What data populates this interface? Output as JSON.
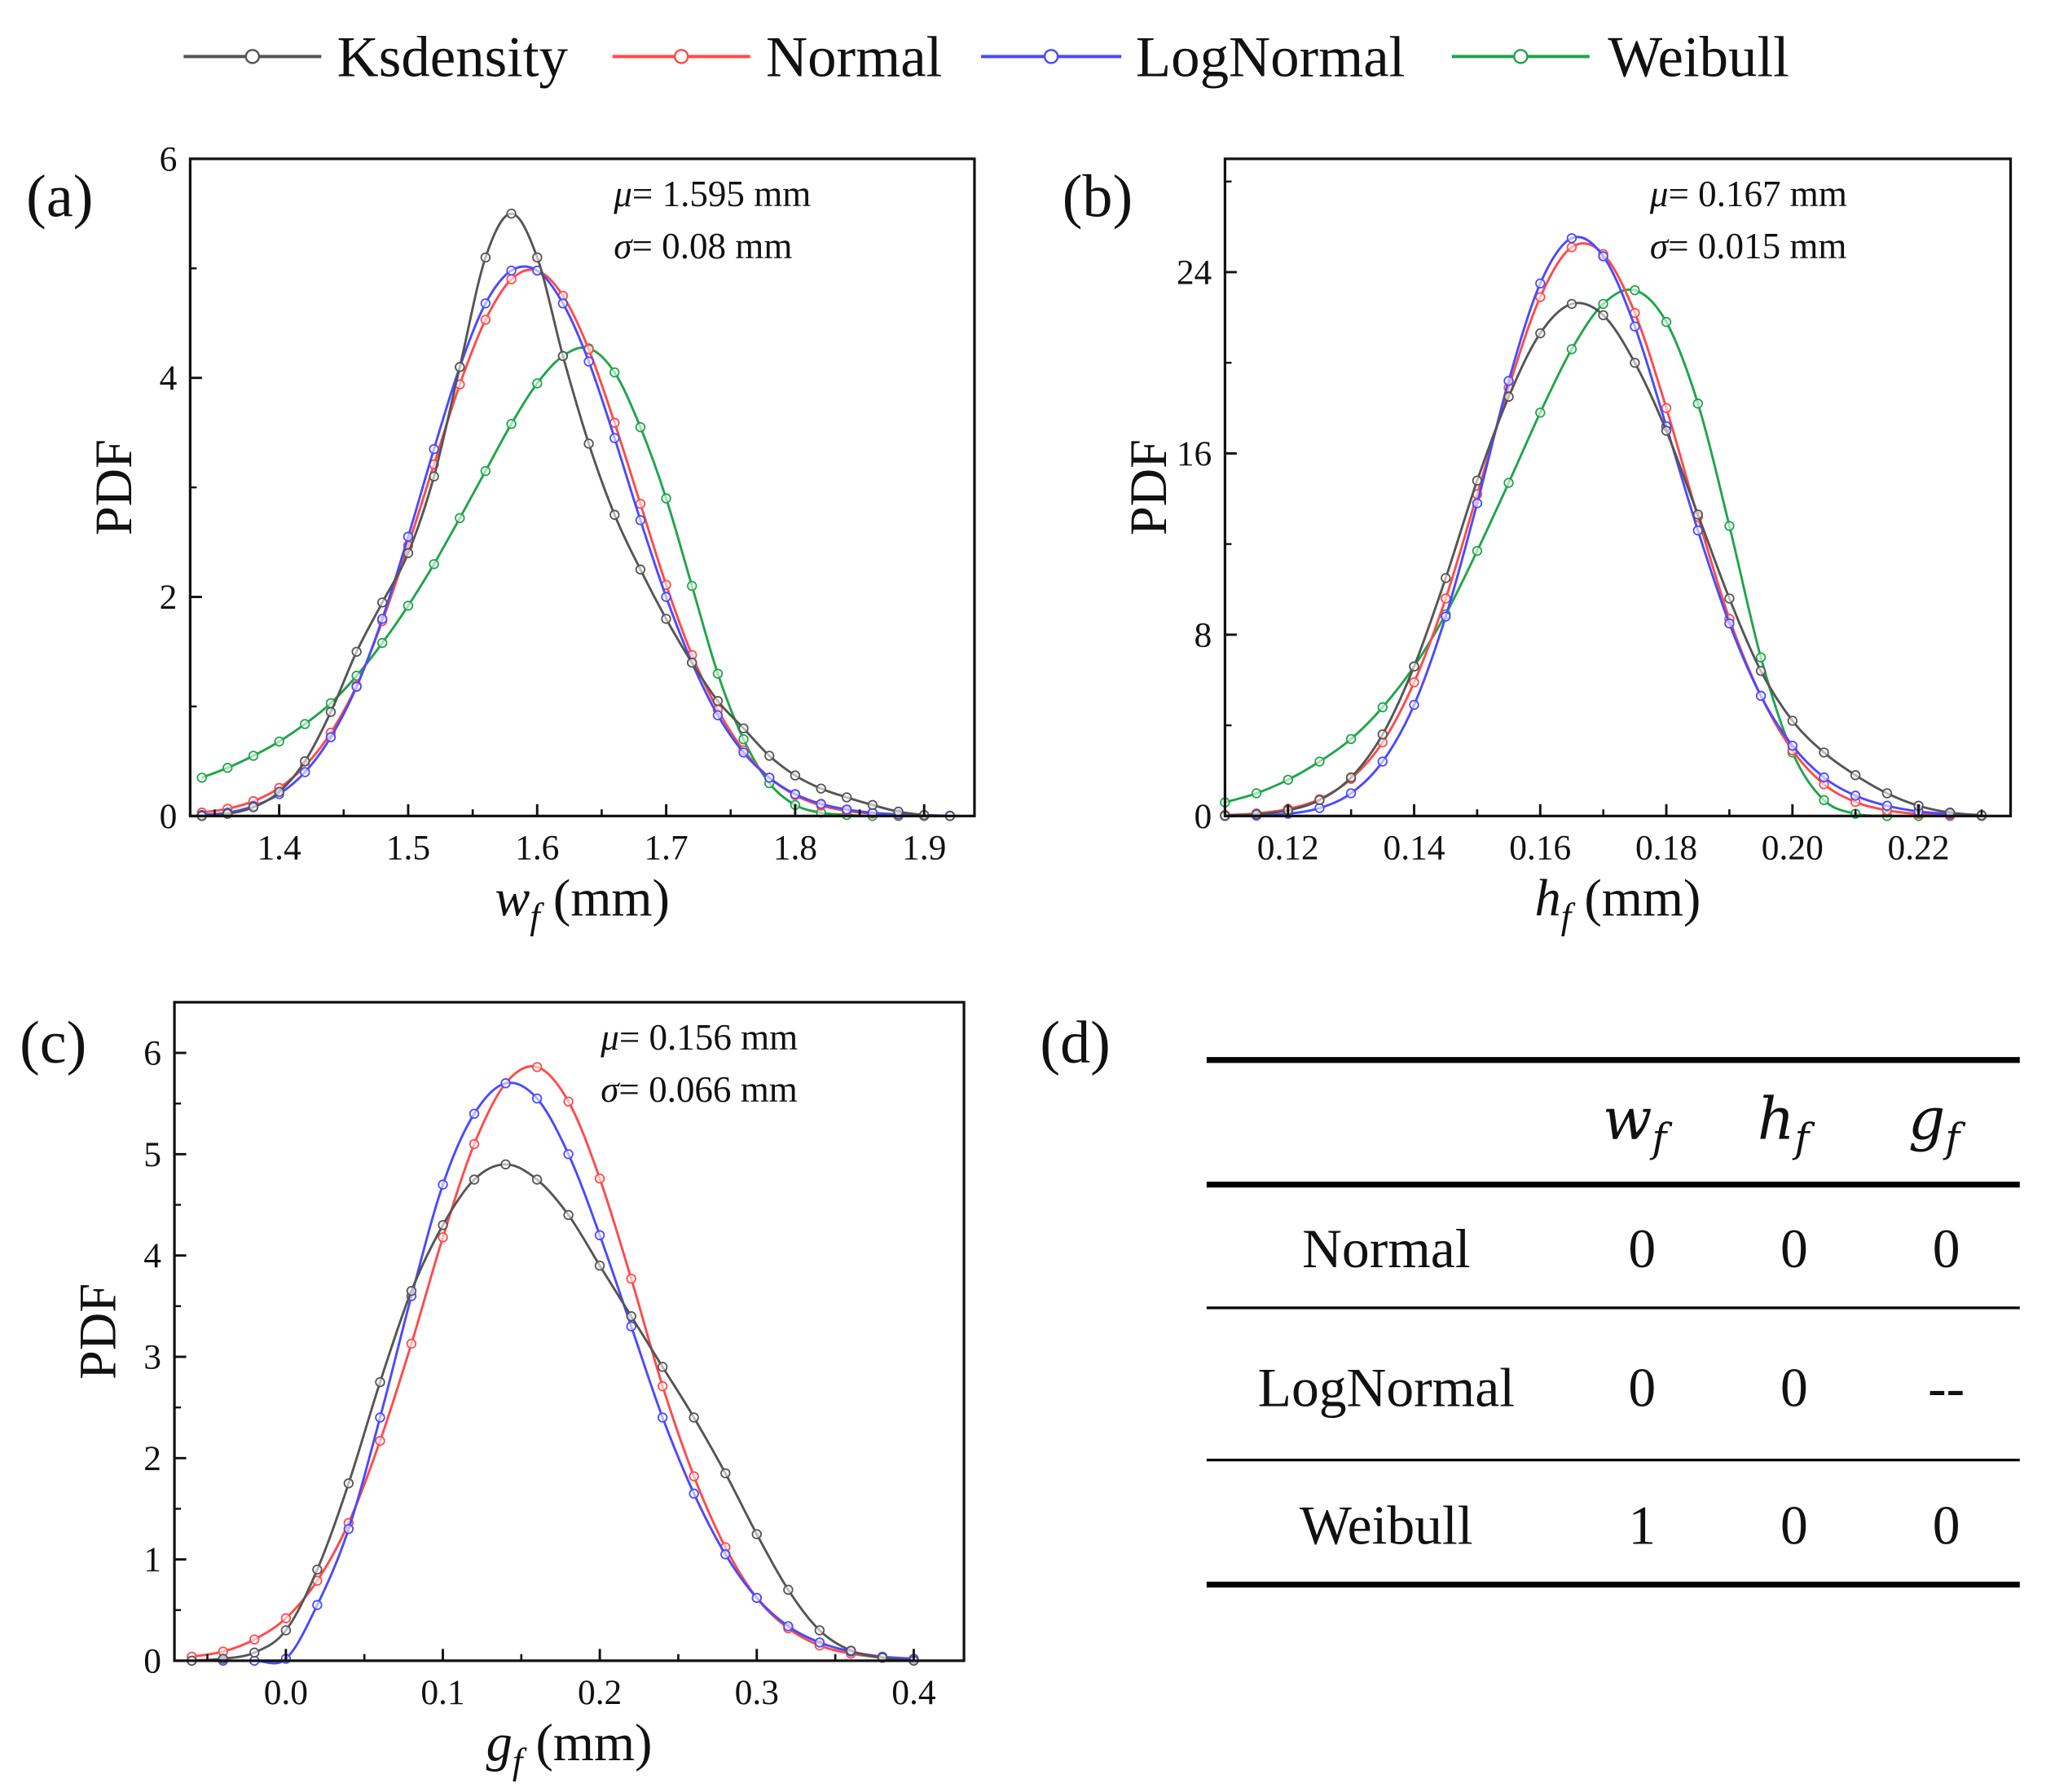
{
  "legend": [
    {
      "name": "Ksdensity",
      "color": "#555555"
    },
    {
      "name": "Normal",
      "color": "#ff4a4a"
    },
    {
      "name": "LogNormal",
      "color": "#4a4aff"
    },
    {
      "name": "Weibull",
      "color": "#1fa54a"
    }
  ],
  "chart_data": [
    {
      "type": "line",
      "panel_label": "(a)",
      "ylabel": "PDF",
      "xlabel": {
        "var": "w",
        "sub": "f",
        "unit": " (mm)"
      },
      "annotation": {
        "mu_symbol": "μ",
        "mu_text": "= 1.595 mm",
        "sigma_symbol": "σ",
        "sigma_text": "= 0.08 mm"
      },
      "xlim": [
        1.331,
        1.939
      ],
      "ylim": [
        0,
        6
      ],
      "x_ticks": [
        1.4,
        1.5,
        1.6,
        1.7,
        1.8,
        1.9
      ],
      "x_tick_labels": [
        "1.4",
        "1.5",
        "1.6",
        "1.7",
        "1.8",
        "1.9"
      ],
      "y_ticks": [
        0,
        2,
        4,
        6
      ],
      "y_tick_labels": [
        "0",
        "2",
        "4",
        "6"
      ],
      "x": [
        1.34,
        1.36,
        1.38,
        1.4,
        1.42,
        1.44,
        1.46,
        1.48,
        1.5,
        1.52,
        1.54,
        1.56,
        1.58,
        1.6,
        1.62,
        1.64,
        1.66,
        1.68,
        1.7,
        1.72,
        1.74,
        1.76,
        1.78,
        1.8,
        1.82,
        1.84,
        1.86,
        1.88,
        1.9,
        1.92
      ],
      "series": [
        {
          "name": "Weibull",
          "values": [
            0.35,
            0.44,
            0.55,
            0.68,
            0.84,
            1.03,
            1.28,
            1.58,
            1.92,
            2.3,
            2.72,
            3.15,
            3.58,
            3.95,
            4.2,
            4.27,
            4.05,
            3.55,
            2.9,
            2.1,
            1.3,
            0.7,
            0.3,
            0.1,
            0.03,
            0.01,
            0,
            0,
            0,
            0
          ]
        },
        {
          "name": "Normal",
          "values": [
            0.031,
            0.066,
            0.135,
            0.256,
            0.456,
            0.76,
            1.19,
            1.78,
            2.47,
            3.21,
            3.94,
            4.53,
            4.9,
            4.98,
            4.75,
            4.26,
            3.59,
            2.85,
            2.11,
            1.47,
            0.97,
            0.6,
            0.35,
            0.19,
            0.096,
            0.046,
            0.021,
            0.009,
            0.004,
            0.001
          ]
        },
        {
          "name": "LogNormal",
          "values": [
            0.01,
            0.03,
            0.09,
            0.2,
            0.4,
            0.72,
            1.18,
            1.8,
            2.55,
            3.35,
            4.1,
            4.68,
            4.98,
            4.98,
            4.68,
            4.15,
            3.45,
            2.7,
            2.0,
            1.4,
            0.92,
            0.58,
            0.35,
            0.2,
            0.11,
            0.06,
            0.03,
            0.015,
            0.007,
            0.003
          ]
        },
        {
          "name": "Ksdensity",
          "values": [
            0,
            0.02,
            0.08,
            0.22,
            0.5,
            0.95,
            1.5,
            1.95,
            2.4,
            3.1,
            4.1,
            5.1,
            5.5,
            5.1,
            4.2,
            3.4,
            2.75,
            2.25,
            1.8,
            1.4,
            1.05,
            0.8,
            0.55,
            0.37,
            0.25,
            0.17,
            0.1,
            0.04,
            0.01,
            0
          ]
        }
      ]
    },
    {
      "type": "line",
      "panel_label": "(b)",
      "ylabel": "PDF",
      "xlabel": {
        "var": "h",
        "sub": "f",
        "unit": " (mm)"
      },
      "annotation": {
        "mu_symbol": "μ",
        "mu_text": "= 0.167 mm",
        "sigma_symbol": "σ",
        "sigma_text": "= 0.015 mm"
      },
      "xlim": [
        0.11,
        0.2346
      ],
      "ylim": [
        0,
        29
      ],
      "x_ticks": [
        0.12,
        0.14,
        0.16,
        0.18,
        0.2,
        0.22
      ],
      "x_tick_labels": [
        "0.12",
        "0.14",
        "0.16",
        "0.18",
        "0.20",
        "0.22"
      ],
      "y_ticks": [
        0,
        8,
        16,
        24
      ],
      "y_tick_labels": [
        "0",
        "8",
        "16",
        "24"
      ],
      "x": [
        0.11,
        0.115,
        0.12,
        0.125,
        0.13,
        0.135,
        0.14,
        0.145,
        0.15,
        0.155,
        0.16,
        0.165,
        0.17,
        0.175,
        0.18,
        0.185,
        0.19,
        0.195,
        0.2,
        0.205,
        0.21,
        0.215,
        0.22,
        0.225,
        0.23
      ],
      "series": [
        {
          "name": "Weibull",
          "values": [
            0.6,
            1.0,
            1.6,
            2.4,
            3.4,
            4.8,
            6.6,
            8.9,
            11.7,
            14.7,
            17.8,
            20.6,
            22.6,
            23.2,
            21.8,
            18.2,
            12.8,
            7.0,
            2.8,
            0.7,
            0.1,
            0,
            0,
            0,
            0
          ]
        },
        {
          "name": "Normal",
          "values": [
            0.04,
            0.11,
            0.31,
            0.74,
            1.64,
            3.25,
            5.9,
            9.6,
            14.2,
            18.9,
            22.9,
            25.1,
            24.8,
            22.2,
            18.0,
            13.2,
            8.7,
            5.3,
            2.9,
            1.4,
            0.62,
            0.25,
            0.09,
            0.03,
            0.01
          ]
        },
        {
          "name": "LogNormal",
          "values": [
            0,
            0.02,
            0.1,
            0.35,
            1.0,
            2.4,
            4.9,
            8.8,
            13.8,
            19.2,
            23.5,
            25.5,
            24.7,
            21.6,
            17.2,
            12.6,
            8.5,
            5.3,
            3.1,
            1.7,
            0.9,
            0.45,
            0.2,
            0.09,
            0.04
          ]
        },
        {
          "name": "Ksdensity",
          "values": [
            0.02,
            0.08,
            0.25,
            0.7,
            1.7,
            3.6,
            6.6,
            10.5,
            14.8,
            18.5,
            21.3,
            22.6,
            22.1,
            20.0,
            17.0,
            13.3,
            9.6,
            6.4,
            4.2,
            2.8,
            1.8,
            1.0,
            0.45,
            0.15,
            0.03
          ]
        }
      ]
    },
    {
      "type": "line",
      "panel_label": "(c)",
      "ylabel": "PDF",
      "xlabel": {
        "var": "g",
        "sub": "f",
        "unit": " (mm)"
      },
      "annotation": {
        "mu_symbol": "μ",
        "mu_text": "= 0.156 mm",
        "sigma_symbol": "σ",
        "sigma_text": "= 0.066 mm"
      },
      "xlim": [
        -0.071,
        0.432
      ],
      "ylim": [
        0,
        6.5
      ],
      "x_ticks": [
        0.0,
        0.1,
        0.2,
        0.3,
        0.4
      ],
      "x_tick_labels": [
        "0.0",
        "0.1",
        "0.2",
        "0.3",
        "0.4"
      ],
      "y_ticks": [
        0,
        1,
        2,
        3,
        4,
        5,
        6
      ],
      "y_tick_labels": [
        "0",
        "1",
        "2",
        "3",
        "4",
        "5",
        "6"
      ],
      "x": [
        -0.06,
        -0.04,
        -0.02,
        0.0,
        0.02,
        0.04,
        0.06,
        0.08,
        0.1,
        0.12,
        0.14,
        0.16,
        0.18,
        0.2,
        0.22,
        0.24,
        0.26,
        0.28,
        0.3,
        0.32,
        0.34,
        0.36,
        0.38,
        0.4
      ],
      "series": [
        {
          "name": "Normal",
          "values": [
            0.04,
            0.09,
            0.21,
            0.42,
            0.79,
            1.36,
            2.17,
            3.13,
            4.18,
            5.1,
            5.7,
            5.86,
            5.52,
            4.76,
            3.77,
            2.71,
            1.82,
            1.12,
            0.62,
            0.32,
            0.15,
            0.07,
            0.03,
            0.01
          ]
        },
        {
          "name": "LogNormal",
          "values": [
            0,
            0,
            0,
            0.02,
            0.55,
            1.3,
            2.4,
            3.6,
            4.7,
            5.4,
            5.7,
            5.55,
            5.0,
            4.2,
            3.3,
            2.4,
            1.65,
            1.05,
            0.62,
            0.34,
            0.18,
            0.09,
            0.04,
            0.02
          ]
        },
        {
          "name": "Ksdensity",
          "values": [
            0,
            0.02,
            0.08,
            0.3,
            0.9,
            1.75,
            2.75,
            3.65,
            4.3,
            4.75,
            4.9,
            4.75,
            4.4,
            3.9,
            3.4,
            2.9,
            2.4,
            1.85,
            1.25,
            0.7,
            0.3,
            0.1,
            0.03,
            0
          ]
        }
      ]
    }
  ],
  "table": {
    "panel_label": "(d)",
    "headers": [
      {
        "var": "w",
        "sub": "f"
      },
      {
        "var": "h",
        "sub": "f"
      },
      {
        "var": "g",
        "sub": "f"
      }
    ],
    "rows": [
      {
        "label": "Normal",
        "values": [
          "0",
          "0",
          "0"
        ]
      },
      {
        "label": "LogNormal",
        "values": [
          "0",
          "0",
          "--"
        ]
      },
      {
        "label": "Weibull",
        "values": [
          "1",
          "0",
          "0"
        ]
      }
    ]
  }
}
